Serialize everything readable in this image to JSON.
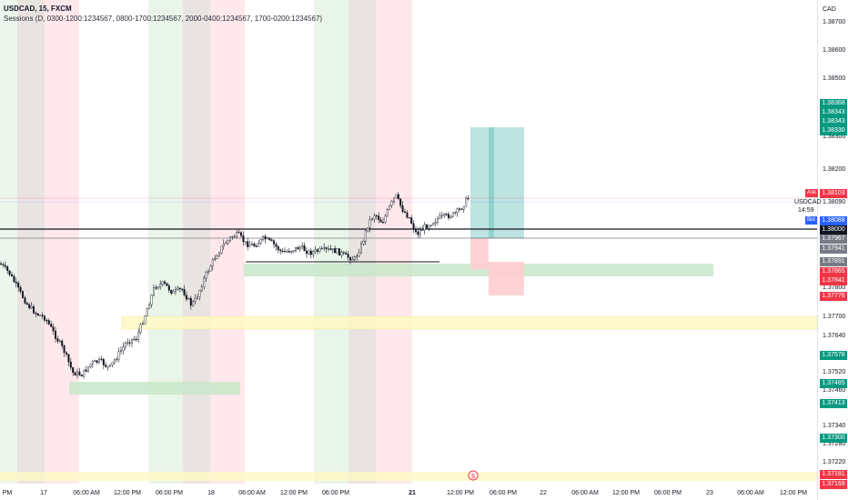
{
  "header": {
    "symbol_line": "USDCAD, 15, FXCM",
    "indicator_line": "Sessions (D, 0300-1200:1234567, 0800-1700:1234567, 2000-0400:1234567, 1700-0200:1234567)"
  },
  "currency": "CAD",
  "yaxis_labels": [
    "1.38700",
    "1.38600",
    "1.38500",
    "1.38300",
    "1.38200",
    "1.38090",
    "1.37800",
    "1.37700",
    "1.37640",
    "1.37520",
    "1.37460",
    "1.37340",
    "1.37280",
    "1.37220"
  ],
  "price_tags": [
    {
      "value": "1.38368",
      "color": "#089981"
    },
    {
      "value": "1.38343",
      "color": "#089981"
    },
    {
      "value": "1.38343",
      "color": "#089981"
    },
    {
      "value": "1.38330",
      "color": "#089981"
    },
    {
      "value": "1.38103",
      "color": "#f23645"
    },
    {
      "value": "1.38088",
      "color": "#2962ff"
    },
    {
      "value": "1.38000",
      "color": "#131722"
    },
    {
      "value": "1.37967",
      "color": "#787b86"
    },
    {
      "value": "1.37941",
      "color": "#787b86"
    },
    {
      "value": "1.37891",
      "color": "#787b86"
    },
    {
      "value": "1.37865",
      "color": "#f23645"
    },
    {
      "value": "1.37841",
      "color": "#f23645"
    },
    {
      "value": "1.37776",
      "color": "#f23645"
    },
    {
      "value": "1.37578",
      "color": "#089981"
    },
    {
      "value": "1.37485",
      "color": "#089981"
    },
    {
      "value": "1.37413",
      "color": "#089981"
    },
    {
      "value": "1.37300",
      "color": "#089981"
    },
    {
      "value": "1.37181",
      "color": "#f23645"
    },
    {
      "value": "1.37169",
      "color": "#f23645"
    }
  ],
  "ask_label": "Ask",
  "bid_label": "Bid",
  "symbol_label": "USDCAD",
  "countdown": "14:59",
  "xaxis_labels": [
    {
      "text": "PM",
      "bold": false
    },
    {
      "text": "17",
      "bold": false
    },
    {
      "text": "06:00 AM",
      "bold": false
    },
    {
      "text": "12:00 PM",
      "bold": false
    },
    {
      "text": "06:00 PM",
      "bold": false
    },
    {
      "text": "18",
      "bold": false
    },
    {
      "text": "06:00 AM",
      "bold": false
    },
    {
      "text": "12:00 PM",
      "bold": false
    },
    {
      "text": "06:00 PM",
      "bold": false
    },
    {
      "text": "21",
      "bold": true
    },
    {
      "text": "12:00 PM",
      "bold": false
    },
    {
      "text": "06:00 PM",
      "bold": false
    },
    {
      "text": "22",
      "bold": false
    },
    {
      "text": "06:00 AM",
      "bold": false
    },
    {
      "text": "12:00 PM",
      "bold": false
    },
    {
      "text": "06:00 PM",
      "bold": false
    },
    {
      "text": "23",
      "bold": false
    },
    {
      "text": "06:00 AM",
      "bold": false
    },
    {
      "text": "12:00 PM",
      "bold": false
    }
  ],
  "colors": {
    "session_green": "#c8e6c9",
    "session_brown": "#d7ccc8",
    "session_red": "#ffcdd2",
    "zone_yellow": "#fff9c4",
    "zone_green": "#c8e6c9",
    "target_teal": "#b2dfdb",
    "stop_red": "#ffcdd2",
    "candle": "#131722"
  }
}
